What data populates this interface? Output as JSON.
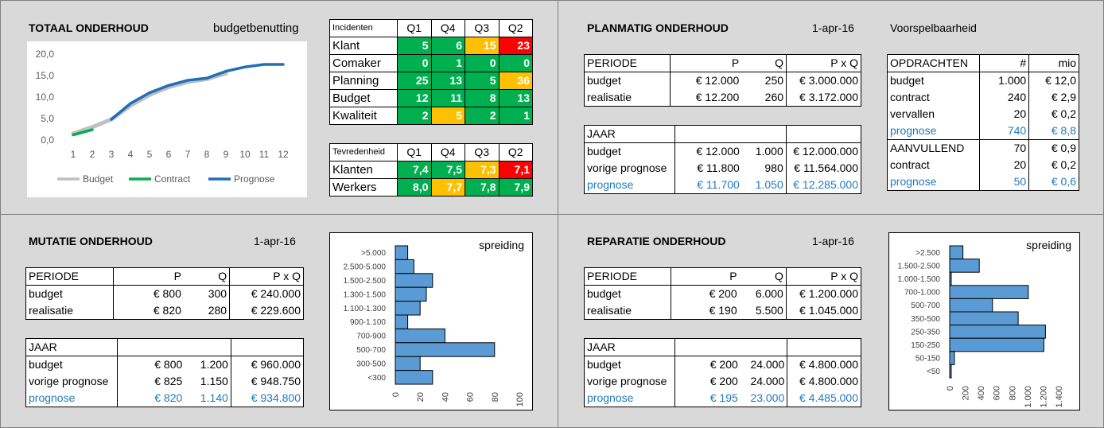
{
  "colors": {
    "green": "#00b050",
    "orange": "#ffc000",
    "red": "#ff0000",
    "bar": "#5b9bd5",
    "blue_text": "#1f7bbf"
  },
  "totaal": {
    "title": "TOTAAL ONDERHOUD",
    "subtitle": "budgetbenutting"
  },
  "incidenten": {
    "header": [
      "Incidenten",
      "Q1",
      "Q4",
      "Q3",
      "Q2"
    ],
    "rows": [
      {
        "label": "Klant",
        "values": [
          "5",
          "6",
          "15",
          "23"
        ],
        "colors": [
          "g",
          "g",
          "o",
          "rd"
        ]
      },
      {
        "label": "Comaker",
        "values": [
          "0",
          "1",
          "0",
          "0"
        ],
        "colors": [
          "g",
          "g",
          "g",
          "g"
        ]
      },
      {
        "label": "Planning",
        "values": [
          "25",
          "13",
          "5",
          "36"
        ],
        "colors": [
          "g",
          "g",
          "g",
          "o"
        ]
      },
      {
        "label": "Budget",
        "values": [
          "12",
          "11",
          "8",
          "13"
        ],
        "colors": [
          "g",
          "g",
          "g",
          "g"
        ]
      },
      {
        "label": "Kwaliteit",
        "values": [
          "2",
          "5",
          "2",
          "1"
        ],
        "colors": [
          "g",
          "o",
          "g",
          "g"
        ]
      }
    ]
  },
  "tevredenheid": {
    "header": [
      "Tevredenheid",
      "Q1",
      "Q4",
      "Q3",
      "Q2"
    ],
    "rows": [
      {
        "label": "Klanten",
        "values": [
          "7,4",
          "7,5",
          "7,3",
          "7,1"
        ],
        "colors": [
          "g",
          "g",
          "o",
          "rd"
        ]
      },
      {
        "label": "Werkers",
        "values": [
          "8,0",
          "7,7",
          "7,8",
          "7,9"
        ],
        "colors": [
          "g",
          "o",
          "g",
          "g"
        ]
      }
    ]
  },
  "planmatig": {
    "title": "PLANMATIG ONDERHOUD",
    "date": "1-apr-16",
    "subtitle": "Voorspelbaarheid",
    "periode": {
      "header": [
        "PERIODE",
        "P",
        "Q",
        "P x Q"
      ],
      "rows": [
        [
          "budget",
          "€ 12.000",
          "250",
          "€ 3.000.000"
        ],
        [
          "realisatie",
          "€ 12.200",
          "260",
          "€ 3.172.000"
        ]
      ]
    },
    "jaar": {
      "header": [
        "JAAR",
        "",
        "",
        ""
      ],
      "rows": [
        [
          "budget",
          "€ 12.000",
          "1.000",
          "€ 12.000.000"
        ],
        [
          "vorige prognose",
          "€ 11.800",
          "980",
          "€ 11.564.000"
        ],
        [
          "prognose",
          "€ 11.700",
          "1.050",
          "€ 12.285.000"
        ]
      ]
    },
    "opdrachten": {
      "header": [
        "OPDRACHTEN",
        "#",
        "mio"
      ],
      "rows": [
        [
          "budget",
          "1.000",
          "€ 12,0"
        ],
        [
          "contract",
          "240",
          "€ 2,9"
        ],
        [
          "vervallen",
          "20",
          "€ 0,2"
        ],
        [
          "prognose",
          "740",
          "€ 8,8"
        ],
        [
          "AANVULLEND",
          "70",
          "€ 0,9"
        ],
        [
          "contract",
          "20",
          "€ 0,2"
        ],
        [
          "prognose",
          "50",
          "€ 0,6"
        ]
      ]
    }
  },
  "mutatie": {
    "title": "MUTATIE ONDERHOUD",
    "date": "1-apr-16",
    "periode": {
      "header": [
        "PERIODE",
        "P",
        "Q",
        "P x Q"
      ],
      "rows": [
        [
          "budget",
          "€ 800",
          "300",
          "€ 240.000"
        ],
        [
          "realisatie",
          "€ 820",
          "280",
          "€ 229.600"
        ]
      ]
    },
    "jaar": {
      "header": [
        "JAAR",
        "",
        "",
        ""
      ],
      "rows": [
        [
          "budget",
          "€ 800",
          "1.200",
          "€ 960.000"
        ],
        [
          "vorige prognose",
          "€ 825",
          "1.150",
          "€ 948.750"
        ],
        [
          "prognose",
          "€ 820",
          "1.140",
          "€ 934.800"
        ]
      ]
    }
  },
  "reparatie": {
    "title": "REPARATIE ONDERHOUD",
    "date": "1-apr-16",
    "periode": {
      "header": [
        "PERIODE",
        "P",
        "Q",
        "P x Q"
      ],
      "rows": [
        [
          "budget",
          "€ 200",
          "6.000",
          "€ 1.200.000"
        ],
        [
          "realisatie",
          "€ 190",
          "5.500",
          "€ 1.045.000"
        ]
      ]
    },
    "jaar": {
      "header": [
        "JAAR",
        "",
        "",
        ""
      ],
      "rows": [
        [
          "budget",
          "€ 200",
          "24.000",
          "€ 4.800.000"
        ],
        [
          "vorige prognose",
          "€ 200",
          "24.000",
          "€ 4.800.000"
        ],
        [
          "prognose",
          "€ 195",
          "23.000",
          "€ 4.485.000"
        ]
      ]
    }
  },
  "chart_data": [
    {
      "type": "line",
      "x": [
        1,
        2,
        3,
        4,
        5,
        6,
        7,
        8,
        9,
        10,
        11,
        12
      ],
      "ylim": [
        0,
        20
      ],
      "yticks": [
        "0,0",
        "5,0",
        "10,0",
        "15,0",
        "20,0"
      ],
      "legend_position": "bottom",
      "series": [
        {
          "name": "Budget",
          "color": "#bfbfbf",
          "values": [
            1.5,
            3.0,
            4.8,
            8.0,
            10.5,
            12.3,
            13.5,
            14.2,
            15.5,
            null,
            null,
            null
          ]
        },
        {
          "name": "Contract",
          "color": "#00b050",
          "values": [
            1.2,
            2.4,
            null,
            null,
            null,
            null,
            null,
            null,
            null,
            null,
            null,
            null
          ]
        },
        {
          "name": "Prognose",
          "color": "#1f6fb7",
          "values": [
            null,
            null,
            4.8,
            8.5,
            11.0,
            12.7,
            13.9,
            14.4,
            16.0,
            17.0,
            17.6,
            17.6
          ]
        }
      ]
    },
    {
      "type": "bar",
      "orientation": "horizontal",
      "title": "spreiding",
      "categories": [
        ">5.000",
        "2.500-5.000",
        "1.500-2.500",
        "1.300-1.500",
        "1.100-1.300",
        "900-1.100",
        "700-900",
        "500-700",
        "300-500",
        "<300"
      ],
      "values": [
        10,
        15,
        30,
        25,
        20,
        10,
        40,
        80,
        20,
        30
      ],
      "xlim": [
        0,
        100
      ],
      "xticks": [
        "0",
        "20",
        "40",
        "60",
        "80",
        "100"
      ]
    },
    {
      "type": "bar",
      "orientation": "horizontal",
      "title": "spreiding",
      "categories": [
        ">2.500",
        "1.500-2.500",
        "1.000-1.500",
        "700-1.000",
        "500-700",
        "350-500",
        "250-350",
        "150-250",
        "50-150",
        "<50"
      ],
      "values": [
        170,
        380,
        20,
        1010,
        550,
        880,
        1230,
        1210,
        60,
        20
      ],
      "xlim": [
        0,
        1400
      ],
      "xticks": [
        "0",
        "200",
        "400",
        "600",
        "800",
        "1.000",
        "1.200",
        "1.400"
      ]
    }
  ]
}
